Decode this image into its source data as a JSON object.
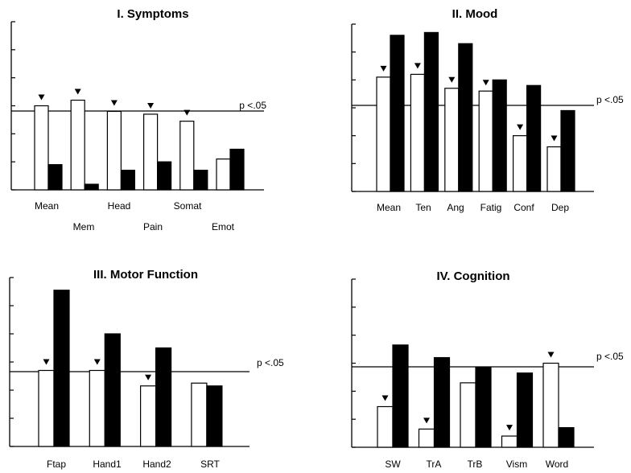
{
  "threshold_label": "p <.05",
  "chart_data": [
    {
      "type": "bar",
      "title": "I. Symptoms",
      "categories": [
        "Mean",
        "Mem",
        "Head",
        "Pain",
        "Somat",
        "Emot"
      ],
      "series": [
        {
          "values": [
            3.0,
            3.2,
            2.8,
            2.7,
            2.45,
            1.1
          ]
        },
        {
          "values": [
            0.9,
            0.2,
            0.7,
            1.0,
            0.7,
            1.45
          ]
        }
      ],
      "markers": [
        true,
        true,
        true,
        true,
        true,
        false
      ],
      "threshold": 2.8,
      "ylim": [
        0,
        6
      ],
      "yticks": 7,
      "grid": false
    },
    {
      "type": "bar",
      "title": "II. Mood",
      "categories": [
        "Mean",
        "Ten",
        "Ang",
        "Fatig",
        "Conf",
        "Dep"
      ],
      "series": [
        {
          "values": [
            4.1,
            4.2,
            3.7,
            3.6,
            2.0,
            1.6
          ]
        },
        {
          "values": [
            5.6,
            5.7,
            5.3,
            4.0,
            3.8,
            2.9
          ]
        }
      ],
      "markers": [
        true,
        true,
        true,
        true,
        true,
        true
      ],
      "threshold": 3.0,
      "ylim": [
        0,
        6
      ],
      "yticks": 7,
      "grid": false
    },
    {
      "type": "bar",
      "title": "III. Motor  Function",
      "categories": [
        "Ftap",
        "Hand1",
        "Hand2",
        "SRT"
      ],
      "series": [
        {
          "values": [
            2.7,
            2.7,
            2.15,
            2.25
          ]
        },
        {
          "values": [
            5.55,
            4.0,
            3.5,
            2.15
          ]
        }
      ],
      "markers": [
        true,
        true,
        true,
        false
      ],
      "threshold": 2.35,
      "ylim": [
        0,
        6
      ],
      "yticks": 7,
      "grid": false
    },
    {
      "type": "bar",
      "title": "IV.  Cognition",
      "categories": [
        "SW",
        "TrA",
        "TrB",
        "Vism",
        "Word"
      ],
      "series": [
        {
          "values": [
            1.45,
            0.65,
            2.3,
            0.4,
            3.0
          ]
        },
        {
          "values": [
            3.65,
            3.2,
            2.85,
            2.65,
            0.7
          ]
        }
      ],
      "markers": [
        true,
        true,
        false,
        true,
        true
      ],
      "threshold": 2.8,
      "ylim": [
        0,
        6
      ],
      "yticks": 7,
      "grid": false
    }
  ]
}
